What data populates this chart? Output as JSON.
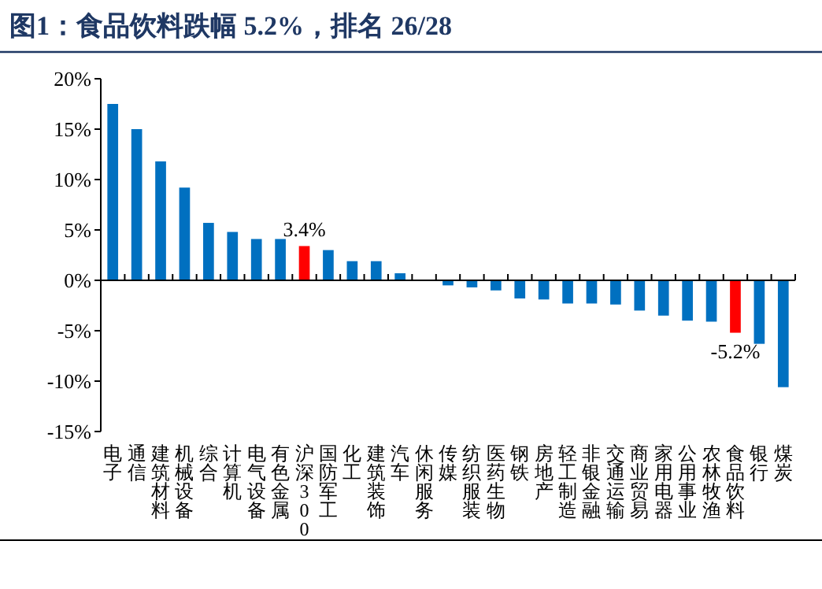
{
  "chart_data": {
    "type": "bar",
    "title": "图1：食品饮料跌幅 5.2%，排名 26/28",
    "categories": [
      "电子",
      "通信",
      "建筑材料",
      "机械设备",
      "综合",
      "计算机",
      "电气设备",
      "有色金属",
      "沪深300",
      "国防军工",
      "化工",
      "建筑装饰",
      "汽车",
      "休闲服务",
      "传媒",
      "纺织服装",
      "医药生物",
      "钢铁",
      "房地产",
      "轻工制造",
      "非银金融",
      "交通运输",
      "商业贸易",
      "家用电器",
      "公用事业",
      "农林牧渔",
      "食品饮料",
      "银行",
      "煤炭"
    ],
    "values": [
      17.5,
      15.0,
      11.8,
      9.2,
      5.7,
      4.8,
      4.1,
      4.1,
      3.4,
      3.0,
      1.9,
      1.9,
      0.7,
      null,
      -0.5,
      -0.7,
      -1.0,
      -1.8,
      -1.9,
      -2.3,
      -2.3,
      -2.4,
      -3.0,
      -3.5,
      -4.0,
      -4.1,
      -5.2,
      -6.3,
      -10.6
    ],
    "colors": [
      "#0070c0",
      "#0070c0",
      "#0070c0",
      "#0070c0",
      "#0070c0",
      "#0070c0",
      "#0070c0",
      "#0070c0",
      "#ff0000",
      "#0070c0",
      "#0070c0",
      "#0070c0",
      "#0070c0",
      "#0070c0",
      "#0070c0",
      "#0070c0",
      "#0070c0",
      "#0070c0",
      "#0070c0",
      "#0070c0",
      "#0070c0",
      "#0070c0",
      "#0070c0",
      "#0070c0",
      "#0070c0",
      "#0070c0",
      "#ff0000",
      "#0070c0",
      "#0070c0"
    ],
    "value_labels": [
      null,
      null,
      null,
      null,
      null,
      null,
      null,
      null,
      "3.4%",
      null,
      null,
      null,
      null,
      null,
      null,
      null,
      null,
      null,
      null,
      null,
      null,
      null,
      null,
      null,
      null,
      null,
      "-5.2%",
      null,
      null
    ],
    "ylim": [
      -15,
      20
    ],
    "yticks": [
      {
        "value": -15,
        "label": "-15%"
      },
      {
        "value": -10,
        "label": "-10%"
      },
      {
        "value": -5,
        "label": "-5%"
      },
      {
        "value": 0,
        "label": "0%"
      },
      {
        "value": 5,
        "label": "5%"
      },
      {
        "value": 10,
        "label": "10%"
      },
      {
        "value": 15,
        "label": "15%"
      },
      {
        "value": 20,
        "label": "20%"
      }
    ]
  }
}
